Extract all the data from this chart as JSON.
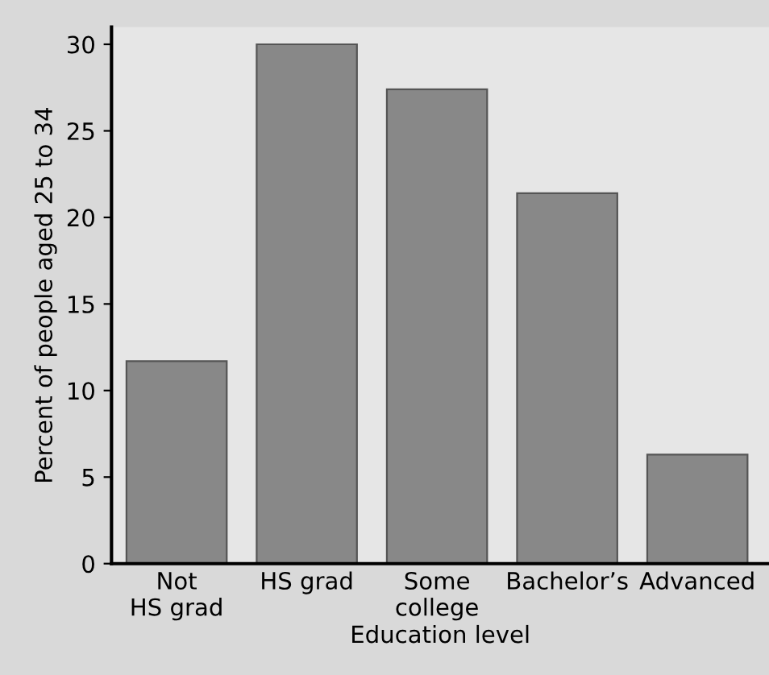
{
  "chart_data": {
    "type": "bar",
    "xlabel": "Education level",
    "ylabel": "Percent of people aged 25 to 34",
    "categories": [
      "Not\nHS grad",
      "HS grad",
      "Some\ncollege",
      "Bachelor’s",
      "Advanced"
    ],
    "values": [
      11.7,
      30.0,
      27.4,
      21.4,
      6.3
    ],
    "color": "#888888",
    "ylim": [
      0,
      31
    ],
    "yticks": [
      0,
      5,
      10,
      15,
      20,
      25,
      30
    ],
    "grid": false
  }
}
